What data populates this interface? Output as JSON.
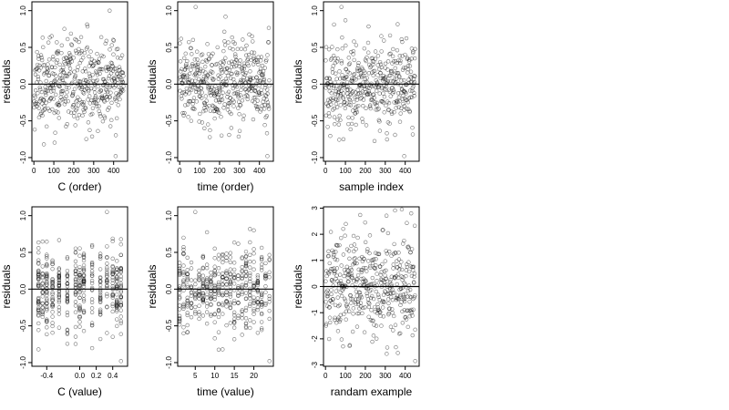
{
  "figure": {
    "layout": "2 rows x 3 columns of residual scatter plots"
  },
  "chart_data": [
    {
      "type": "scatter",
      "panel": "C (order)",
      "xlabel": "C (order)",
      "ylabel": "residuals",
      "xlim": [
        -10,
        470
      ],
      "ylim": [
        -1.05,
        1.12
      ],
      "xticks": [
        0,
        100,
        200,
        300,
        400
      ],
      "yticks": [
        -1.0,
        -0.5,
        0.0,
        0.5,
        1.0
      ],
      "xtick_labels": [
        "0",
        "100",
        "200",
        "300",
        "400"
      ],
      "ytick_labels": [
        "-1.0",
        "-0.5",
        "0.0",
        "0.5",
        "1.0"
      ],
      "hline": 0,
      "x_mode": "index",
      "n_points": 450,
      "seed": 11,
      "noise": {
        "kind": "normal",
        "sd": 0.28,
        "clip": [
          -1.0,
          1.08
        ]
      },
      "extremes": [
        {
          "x": 380,
          "y": 1.0
        },
        {
          "x": 50,
          "y": -0.82
        },
        {
          "x": 410,
          "y": -0.98
        }
      ]
    },
    {
      "type": "scatter",
      "panel": "time (order)",
      "xlabel": "time (order)",
      "ylabel": "residuals",
      "xlim": [
        -10,
        470
      ],
      "ylim": [
        -1.05,
        1.12
      ],
      "xticks": [
        0,
        100,
        200,
        300,
        400
      ],
      "yticks": [
        -1.0,
        -0.5,
        0.0,
        0.5,
        1.0
      ],
      "xtick_labels": [
        "0",
        "100",
        "200",
        "300",
        "400"
      ],
      "ytick_labels": [
        "-1.0",
        "-0.5",
        "0.0",
        "0.5",
        "1.0"
      ],
      "hline": 0,
      "x_mode": "index",
      "n_points": 450,
      "seed": 23,
      "noise": {
        "kind": "normal",
        "sd": 0.28,
        "clip": [
          -1.0,
          1.08
        ]
      },
      "extremes": [
        {
          "x": 80,
          "y": 1.05
        },
        {
          "x": 210,
          "y": -0.7
        },
        {
          "x": 440,
          "y": -0.98
        }
      ]
    },
    {
      "type": "scatter",
      "panel": "sample index",
      "xlabel": "sample index",
      "ylabel": "residuals",
      "xlim": [
        -10,
        470
      ],
      "ylim": [
        -1.05,
        1.12
      ],
      "xticks": [
        0,
        100,
        200,
        300,
        400
      ],
      "yticks": [
        -1.0,
        -0.5,
        0.0,
        0.5,
        1.0
      ],
      "xtick_labels": [
        "0",
        "100",
        "200",
        "300",
        "400"
      ],
      "ytick_labels": [
        "-1.0",
        "-0.5",
        "0.0",
        "0.5",
        "1.0"
      ],
      "hline": 0,
      "x_mode": "index",
      "n_points": 450,
      "seed": 37,
      "noise": {
        "kind": "normal",
        "sd": 0.28,
        "clip": [
          -1.0,
          1.08
        ]
      },
      "extremes": [
        {
          "x": 80,
          "y": 1.05
        },
        {
          "x": 90,
          "y": -0.75
        },
        {
          "x": 395,
          "y": -0.98
        }
      ]
    },
    {
      "type": "scatter",
      "panel": "C (value)",
      "xlabel": "C (value)",
      "ylabel": "residuals",
      "xlim": [
        -0.58,
        0.58
      ],
      "ylim": [
        -1.05,
        1.12
      ],
      "xticks": [
        -0.4,
        0.0,
        0.2,
        0.4
      ],
      "yticks": [
        -1.0,
        -0.5,
        0.0,
        0.5,
        1.0
      ],
      "xtick_labels": [
        "-0.4",
        "0.0",
        "0.2",
        "0.4"
      ],
      "ytick_labels": [
        "-1.0",
        "-0.5",
        "0.0",
        "0.5",
        "1.0"
      ],
      "hline": 0,
      "x_mode": "discrete",
      "x_values": [
        -0.5,
        -0.45,
        -0.4,
        -0.33,
        -0.25,
        -0.15,
        -0.05,
        0.0,
        0.05,
        0.15,
        0.25,
        0.33,
        0.4,
        0.45,
        0.5
      ],
      "n_points": 450,
      "seed": 53,
      "noise": {
        "kind": "normal",
        "sd": 0.28,
        "clip": [
          -1.0,
          1.08
        ]
      },
      "extremes": [
        {
          "x": 0.33,
          "y": 1.05
        },
        {
          "x": -0.5,
          "y": -0.82
        },
        {
          "x": 0.5,
          "y": -0.98
        }
      ]
    },
    {
      "type": "scatter",
      "panel": "time (value)",
      "xlabel": "time (value)",
      "ylabel": "residuals",
      "xlim": [
        0.5,
        25
      ],
      "ylim": [
        -1.05,
        1.12
      ],
      "xticks": [
        5,
        10,
        15,
        20
      ],
      "yticks": [
        -1.0,
        -0.5,
        0.0,
        0.5,
        1.0
      ],
      "xtick_labels": [
        "5",
        "10",
        "15",
        "20"
      ],
      "ytick_labels": [
        "-1.0",
        "-0.5",
        "0.0",
        "0.5",
        "1.0"
      ],
      "hline": 0,
      "x_mode": "discrete",
      "x_values": [
        1,
        2,
        3,
        4,
        5,
        6,
        7,
        8,
        9,
        10,
        11,
        12,
        13,
        14,
        15,
        16,
        17,
        18,
        19,
        20,
        21,
        22,
        23,
        24
      ],
      "n_points": 450,
      "seed": 71,
      "noise": {
        "kind": "normal",
        "sd": 0.28,
        "clip": [
          -1.0,
          1.08
        ]
      },
      "extremes": [
        {
          "x": 5,
          "y": 1.05
        },
        {
          "x": 12,
          "y": -0.82
        },
        {
          "x": 24,
          "y": -0.98
        }
      ]
    },
    {
      "type": "scatter",
      "panel": "randam example",
      "xlabel": "randam example",
      "ylabel": "residuals",
      "xlim": [
        -10,
        470
      ],
      "ylim": [
        -3.05,
        3.05
      ],
      "xticks": [
        0,
        100,
        200,
        300,
        400
      ],
      "yticks": [
        -3,
        -2,
        -1,
        0,
        1,
        2,
        3
      ],
      "xtick_labels": [
        "0",
        "100",
        "200",
        "300",
        "400"
      ],
      "ytick_labels": [
        "-3",
        "-2",
        "-1",
        "0",
        "1",
        "2",
        "3"
      ],
      "hline": 0,
      "x_mode": "index",
      "n_points": 450,
      "seed": 97,
      "noise": {
        "kind": "normal",
        "sd": 1.0,
        "clip": [
          -2.95,
          2.95
        ]
      },
      "extremes": [
        {
          "x": 430,
          "y": 2.8
        },
        {
          "x": 450,
          "y": -2.85
        }
      ]
    }
  ]
}
